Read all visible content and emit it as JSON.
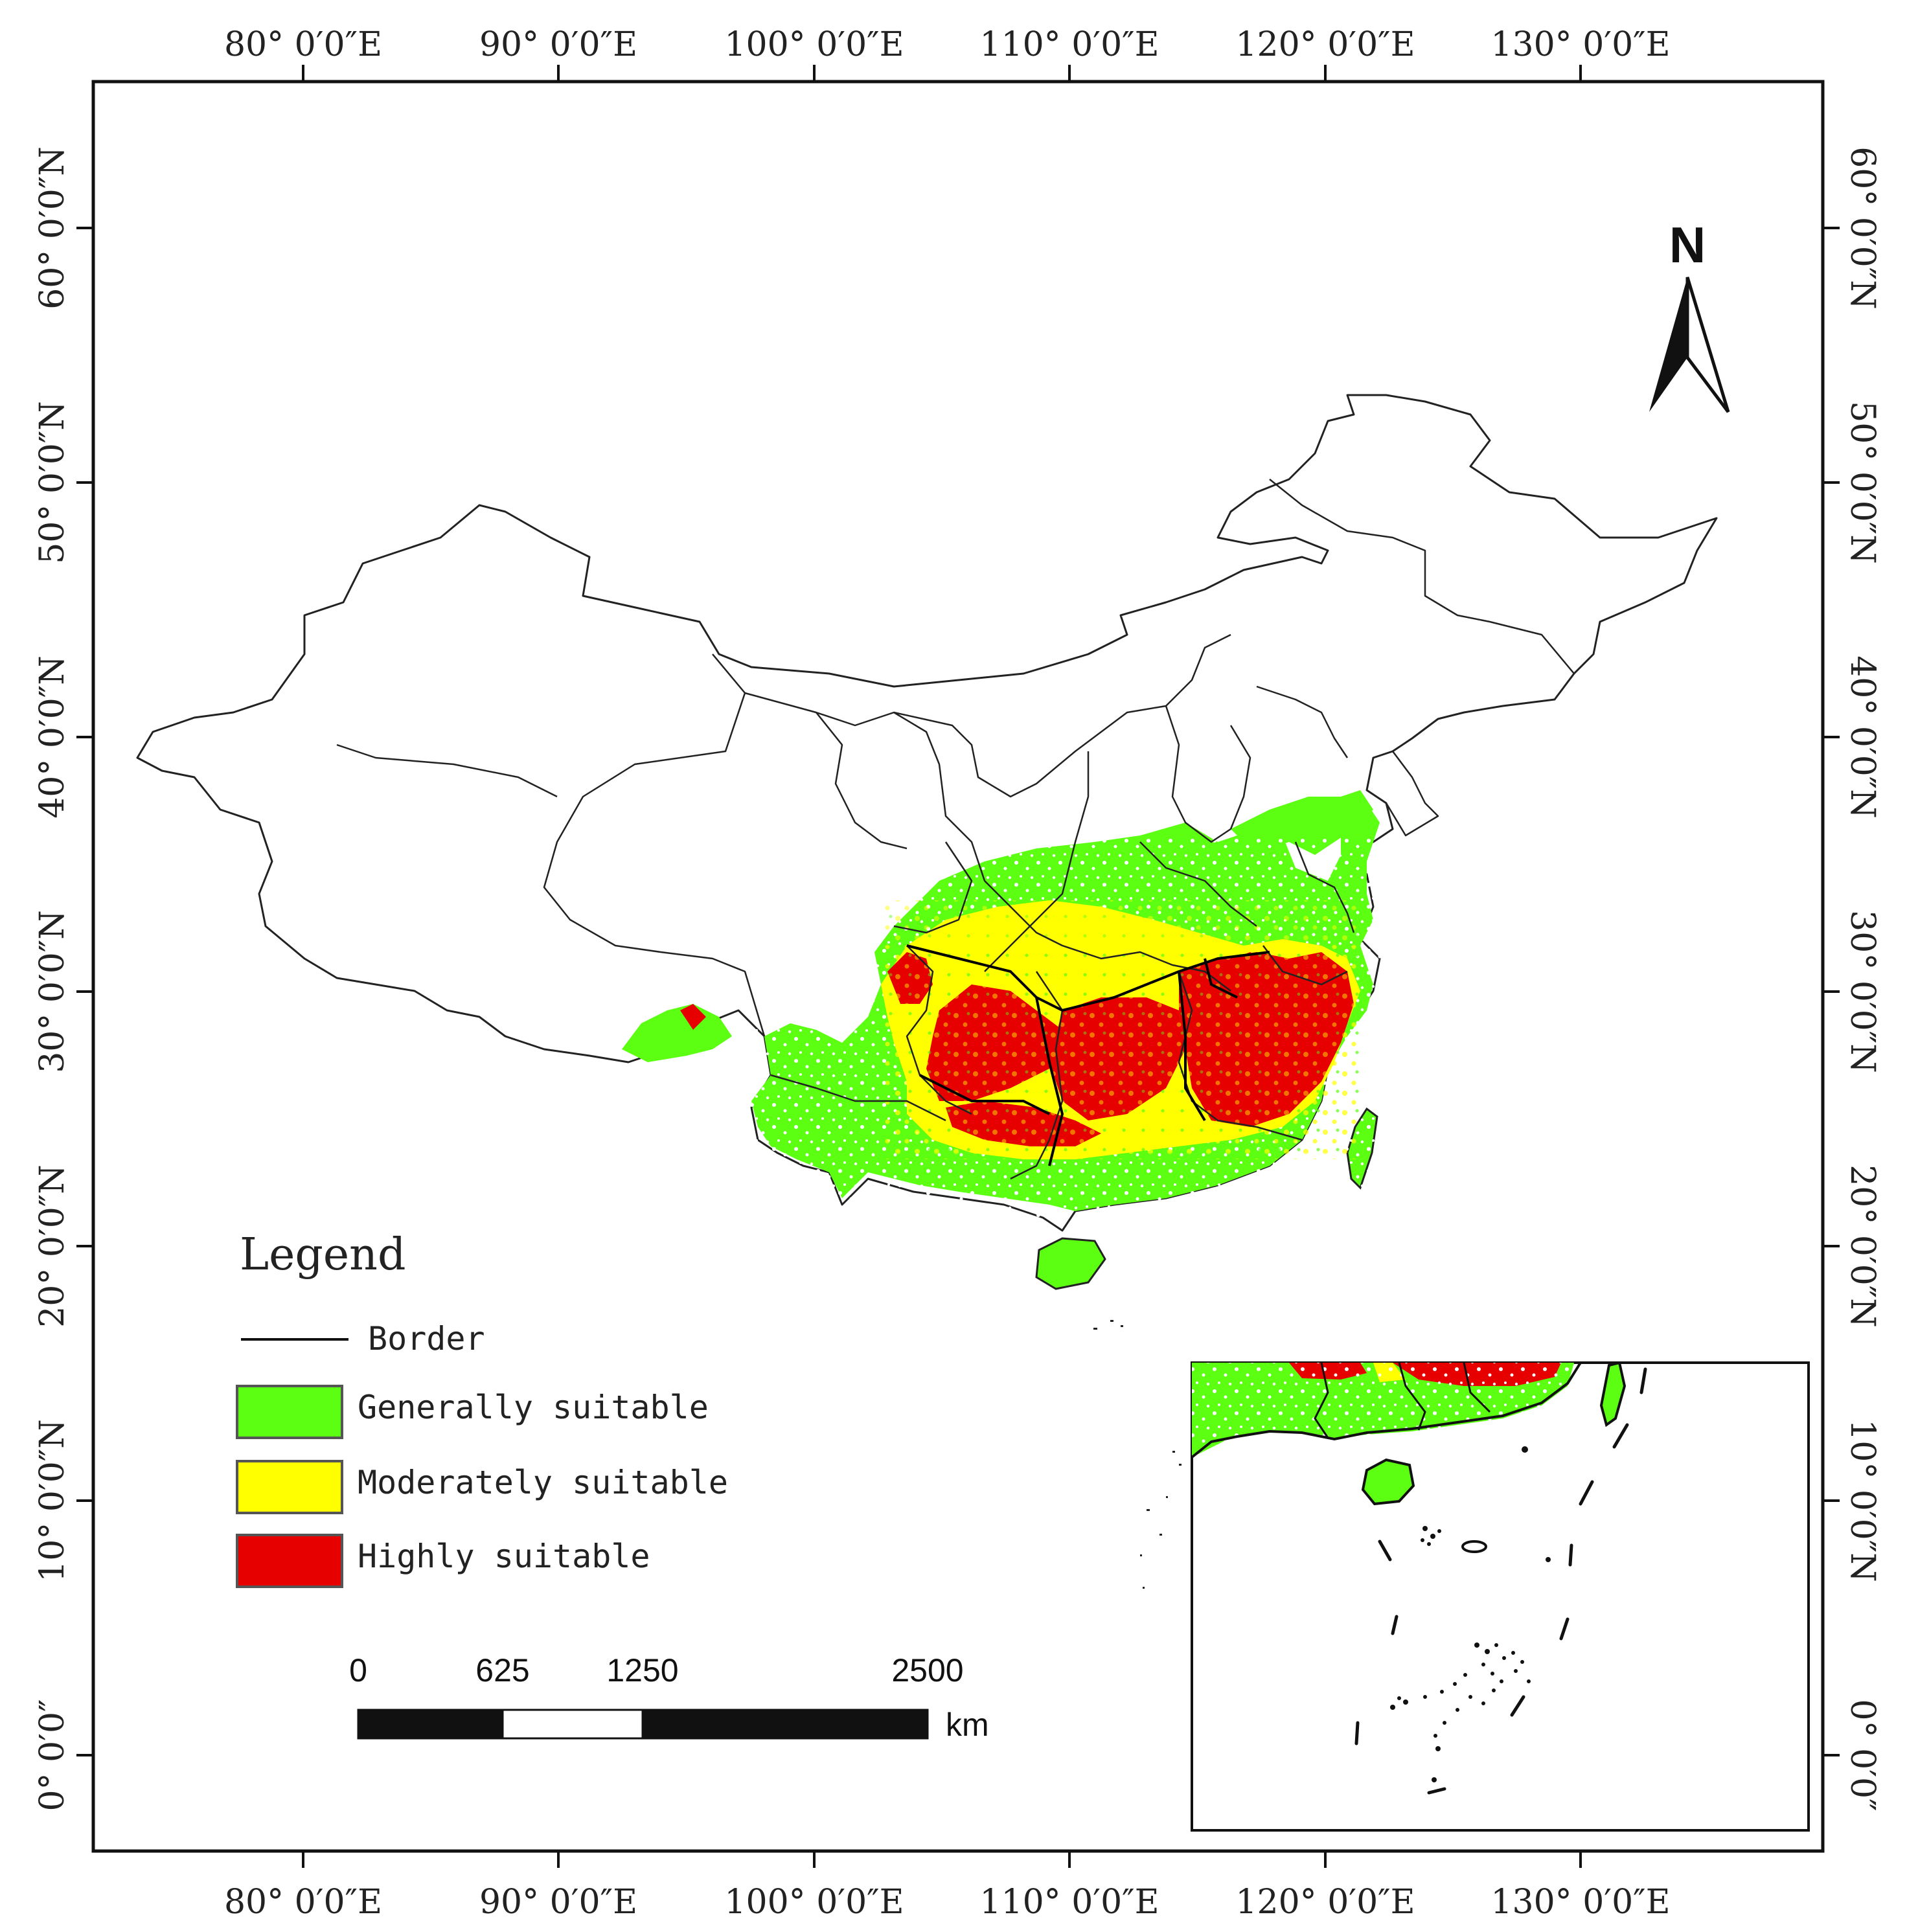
{
  "map": {
    "top_axis": {
      "ticks": [
        "80° 0′0″E",
        "90° 0′0″E",
        "100° 0′0″E",
        "110° 0′0″E",
        "120° 0′0″E",
        "130° 0′0″E"
      ]
    },
    "bottom_axis": {
      "ticks": [
        "80° 0′0″E",
        "90° 0′0″E",
        "100° 0′0″E",
        "110° 0′0″E",
        "120° 0′0″E",
        "130° 0′0″E"
      ]
    },
    "left_axis": {
      "ticks": [
        "60° 0′0″N",
        "50° 0′0″N",
        "40° 0′0″N",
        "30° 0′0″N",
        "20° 0′0″N",
        "10° 0′0″N",
        "0° 0′0″"
      ]
    },
    "right_axis": {
      "ticks": [
        "60° 0′0″N",
        "50° 0′0″N",
        "40° 0′0″N",
        "30° 0′0″N",
        "20° 0′0″N",
        "10° 0′0″N",
        "0° 0′0″"
      ]
    },
    "north_arrow": {
      "label": "N"
    },
    "legend": {
      "title": "Legend",
      "border_label": "Border",
      "items": [
        {
          "label": "Generally suitable",
          "color": "#5cff12"
        },
        {
          "label": "Moderately suitable",
          "color": "#ffff00"
        },
        {
          "label": "Highly suitable",
          "color": "#e60000"
        }
      ]
    },
    "scale_bar": {
      "ticks": [
        "0",
        "625",
        "1250",
        "2500"
      ],
      "unit": "km"
    }
  }
}
